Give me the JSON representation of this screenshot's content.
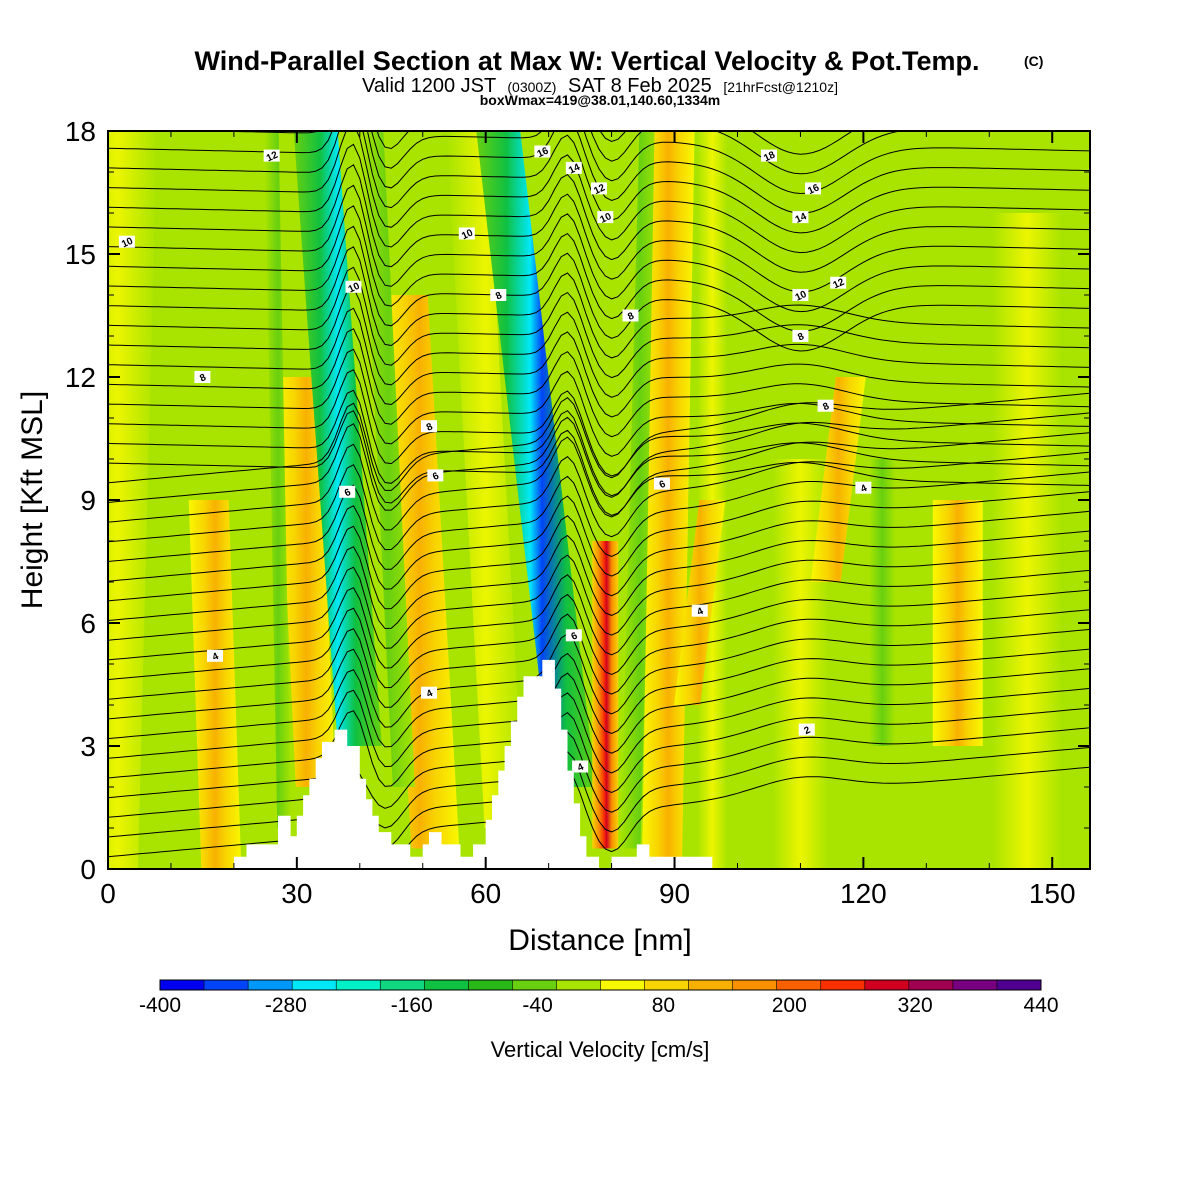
{
  "title": {
    "main": "Wind-Parallel Section at Max W: Vertical Velocity & Pot.Temp.",
    "copyright": "(C)",
    "valid_prefix": "Valid 1200 JST",
    "valid_utc": "(0300Z)",
    "valid_date": "SAT 8 Feb 2025",
    "forecast": "[21hrFcst@1210z]",
    "box": "boxWmax=419@38.01,140.60,1334m"
  },
  "chart_data": {
    "type": "heatmap",
    "xlabel": "Distance [nm]",
    "ylabel": "Height [Kft MSL]",
    "xlim": [
      0,
      156
    ],
    "ylim": [
      0,
      18
    ],
    "x_ticks": [
      0,
      30,
      60,
      90,
      120,
      150
    ],
    "y_ticks": [
      0,
      3,
      6,
      9,
      12,
      15,
      18
    ],
    "colorbar": {
      "title": "Vertical Velocity [cm/s]",
      "min": -400,
      "step": 40,
      "tick_labels": [
        "-400",
        "-280",
        "-160",
        "-40",
        "80",
        "200",
        "320",
        "440"
      ],
      "colors": [
        "#0000f0",
        "#0044f8",
        "#0098f8",
        "#00e8f8",
        "#00f0c8",
        "#10d880",
        "#10c040",
        "#28b818",
        "#68d010",
        "#a8e400",
        "#f8f800",
        "#f8d400",
        "#f8b000",
        "#f89000",
        "#f86000",
        "#f83000",
        "#d00020",
        "#a00050",
        "#780080",
        "#500090"
      ]
    },
    "terrain": [
      [
        0,
        0
      ],
      [
        20,
        0
      ],
      [
        20,
        0.3
      ],
      [
        22,
        0.3
      ],
      [
        22,
        0.6
      ],
      [
        27,
        0.6
      ],
      [
        27,
        1.3
      ],
      [
        29,
        1.3
      ],
      [
        29,
        0.8
      ],
      [
        30,
        0.8
      ],
      [
        30,
        1.3
      ],
      [
        31,
        1.3
      ],
      [
        31,
        1.8
      ],
      [
        32,
        1.8
      ],
      [
        32,
        2.2
      ],
      [
        33,
        2.2
      ],
      [
        33,
        2.7
      ],
      [
        34,
        2.7
      ],
      [
        34,
        3.1
      ],
      [
        36,
        3.1
      ],
      [
        36,
        3.4
      ],
      [
        38,
        3.4
      ],
      [
        38,
        3.0
      ],
      [
        40,
        3.0
      ],
      [
        40,
        2.2
      ],
      [
        41,
        2.2
      ],
      [
        41,
        1.7
      ],
      [
        42,
        1.7
      ],
      [
        42,
        1.3
      ],
      [
        43,
        1.3
      ],
      [
        43,
        0.9
      ],
      [
        45,
        0.9
      ],
      [
        45,
        0.6
      ],
      [
        48,
        0.6
      ],
      [
        48,
        0.3
      ],
      [
        50,
        0.3
      ],
      [
        50,
        0.6
      ],
      [
        51,
        0.6
      ],
      [
        51,
        0.9
      ],
      [
        53,
        0.9
      ],
      [
        53,
        0.6
      ],
      [
        56,
        0.6
      ],
      [
        56,
        0.3
      ],
      [
        58,
        0.3
      ],
      [
        58,
        0.6
      ],
      [
        60,
        0.6
      ],
      [
        60,
        1.2
      ],
      [
        61,
        1.2
      ],
      [
        61,
        1.8
      ],
      [
        62,
        1.8
      ],
      [
        62,
        2.4
      ],
      [
        63,
        2.4
      ],
      [
        63,
        3.0
      ],
      [
        64,
        3.0
      ],
      [
        64,
        3.6
      ],
      [
        65,
        3.6
      ],
      [
        65,
        4.2
      ],
      [
        66,
        4.2
      ],
      [
        66,
        4.7
      ],
      [
        69,
        4.7
      ],
      [
        69,
        5.1
      ],
      [
        71,
        5.1
      ],
      [
        71,
        4.4
      ],
      [
        72,
        4.4
      ],
      [
        72,
        3.4
      ],
      [
        73,
        3.4
      ],
      [
        73,
        2.4
      ],
      [
        74,
        2.4
      ],
      [
        74,
        1.6
      ],
      [
        75,
        1.6
      ],
      [
        75,
        0.8
      ],
      [
        76,
        0.8
      ],
      [
        76,
        0.3
      ],
      [
        78,
        0.3
      ],
      [
        78,
        0
      ],
      [
        80,
        0
      ],
      [
        80,
        0.3
      ],
      [
        84,
        0.3
      ],
      [
        84,
        0.6
      ],
      [
        86,
        0.6
      ],
      [
        86,
        0.3
      ],
      [
        96,
        0.3
      ],
      [
        96,
        0
      ],
      [
        100,
        0
      ],
      [
        156,
        0
      ]
    ],
    "contour_labels": [
      {
        "text": "2",
        "x": 111,
        "y": 3.4
      },
      {
        "text": "4",
        "x": 17,
        "y": 5.2
      },
      {
        "text": "4",
        "x": 51,
        "y": 4.3
      },
      {
        "text": "4",
        "x": 75,
        "y": 2.5
      },
      {
        "text": "4",
        "x": 94,
        "y": 6.3
      },
      {
        "text": "4",
        "x": 120,
        "y": 9.3
      },
      {
        "text": "6",
        "x": 38,
        "y": 9.2
      },
      {
        "text": "6",
        "x": 52,
        "y": 9.6
      },
      {
        "text": "6",
        "x": 74,
        "y": 5.7
      },
      {
        "text": "6",
        "x": 88,
        "y": 9.4
      },
      {
        "text": "8",
        "x": 15,
        "y": 12.0
      },
      {
        "text": "8",
        "x": 51,
        "y": 10.8
      },
      {
        "text": "8",
        "x": 62,
        "y": 14.0
      },
      {
        "text": "8",
        "x": 83,
        "y": 13.5
      },
      {
        "text": "8",
        "x": 110,
        "y": 13.0
      },
      {
        "text": "8",
        "x": 114,
        "y": 11.3
      },
      {
        "text": "10",
        "x": 3,
        "y": 15.3
      },
      {
        "text": "10",
        "x": 39,
        "y": 14.2
      },
      {
        "text": "10",
        "x": 57,
        "y": 15.5
      },
      {
        "text": "10",
        "x": 79,
        "y": 15.9
      },
      {
        "text": "10",
        "x": 110,
        "y": 14.0
      },
      {
        "text": "12",
        "x": 26,
        "y": 17.4
      },
      {
        "text": "12",
        "x": 78,
        "y": 16.6
      },
      {
        "text": "12",
        "x": 116,
        "y": 14.3
      },
      {
        "text": "14",
        "x": 74,
        "y": 17.1
      },
      {
        "text": "14",
        "x": 110,
        "y": 15.9
      },
      {
        "text": "16",
        "x": 69,
        "y": 17.5
      },
      {
        "text": "16",
        "x": 112,
        "y": 16.6
      },
      {
        "text": "18",
        "x": 105,
        "y": 17.4
      }
    ]
  }
}
